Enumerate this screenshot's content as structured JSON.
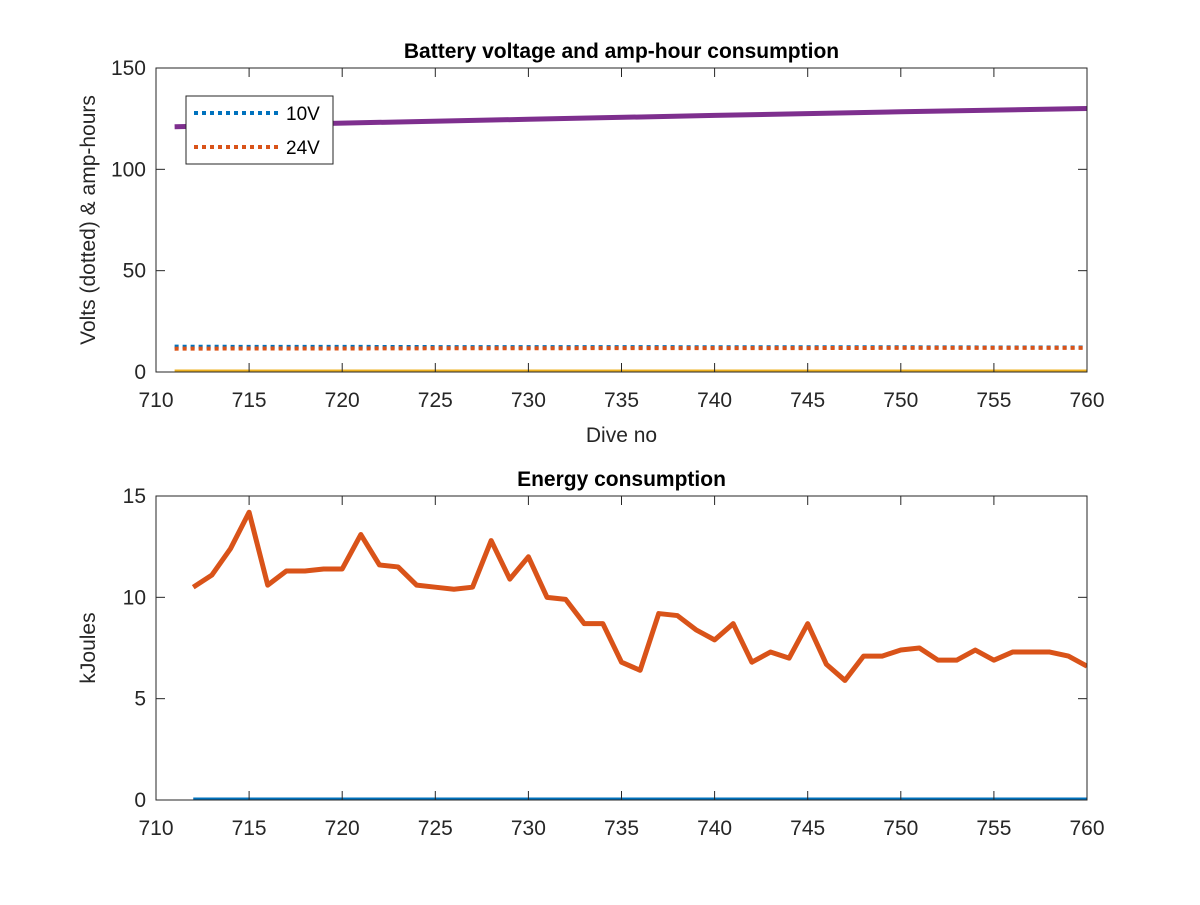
{
  "chart_data": [
    {
      "type": "line",
      "title": "Battery voltage and amp-hour consumption",
      "xlabel": "Dive no",
      "ylabel": "Volts (dotted) & amp-hours",
      "xlim": [
        710,
        760
      ],
      "ylim": [
        0,
        150
      ],
      "xticks": [
        710,
        715,
        720,
        725,
        730,
        735,
        740,
        745,
        750,
        755,
        760
      ],
      "yticks": [
        0,
        50,
        100,
        150
      ],
      "grid": false,
      "legend_position": "top-left",
      "series": [
        {
          "name": "10V",
          "style": "dotted",
          "color": "#0072BD",
          "x": [
            711,
            715,
            720,
            725,
            730,
            735,
            740,
            745,
            750,
            755,
            760
          ],
          "y": [
            12.5,
            12.4,
            12.4,
            12.3,
            12.3,
            12.3,
            12.2,
            12.2,
            12.2,
            12.1,
            12.1
          ]
        },
        {
          "name": "24V",
          "style": "dotted",
          "color": "#D95319",
          "x": [
            711,
            715,
            720,
            725,
            730,
            735,
            740,
            745,
            750,
            755,
            760
          ],
          "y": [
            11.5,
            11.6,
            11.6,
            11.7,
            11.7,
            11.8,
            11.8,
            11.8,
            11.9,
            11.9,
            11.9
          ]
        },
        {
          "style": "solid",
          "color": "#EDB120",
          "x": [
            711,
            760
          ],
          "y": [
            0,
            0
          ]
        },
        {
          "style": "solid",
          "color": "#7E2F8E",
          "x": [
            711,
            720,
            730,
            740,
            750,
            760
          ],
          "y": [
            121,
            122.8,
            124.7,
            126.6,
            128.4,
            130
          ]
        }
      ]
    },
    {
      "type": "line",
      "title": "Energy consumption",
      "xlabel": "",
      "ylabel": "kJoules",
      "xlim": [
        710,
        760
      ],
      "ylim": [
        0,
        15
      ],
      "xticks": [
        710,
        715,
        720,
        725,
        730,
        735,
        740,
        745,
        750,
        755,
        760
      ],
      "yticks": [
        0,
        5,
        10,
        15
      ],
      "grid": false,
      "series": [
        {
          "style": "solid",
          "color": "#0072BD",
          "x": [
            712,
            760
          ],
          "y": [
            0,
            0
          ]
        },
        {
          "style": "solid",
          "color": "#D95319",
          "x": [
            712,
            713,
            714,
            715,
            716,
            717,
            718,
            719,
            720,
            721,
            722,
            723,
            724,
            725,
            726,
            727,
            728,
            729,
            730,
            731,
            732,
            733,
            734,
            735,
            736,
            737,
            738,
            739,
            740,
            741,
            742,
            743,
            744,
            745,
            746,
            747,
            748,
            749,
            750,
            751,
            752,
            753,
            754,
            755,
            756,
            757,
            758,
            759,
            760
          ],
          "y": [
            10.5,
            11.1,
            12.4,
            14.2,
            10.6,
            11.3,
            11.3,
            11.4,
            11.4,
            13.1,
            11.6,
            11.5,
            10.6,
            10.5,
            10.4,
            10.5,
            12.8,
            10.9,
            12.0,
            10.0,
            9.9,
            8.7,
            8.7,
            6.8,
            6.4,
            9.2,
            9.1,
            8.4,
            7.9,
            8.7,
            6.8,
            7.3,
            7.0,
            8.7,
            6.7,
            5.9,
            7.1,
            7.1,
            7.4,
            7.5,
            6.9,
            6.9,
            7.4,
            6.9,
            7.3,
            7.3,
            7.3,
            7.1,
            6.6
          ]
        }
      ]
    }
  ]
}
